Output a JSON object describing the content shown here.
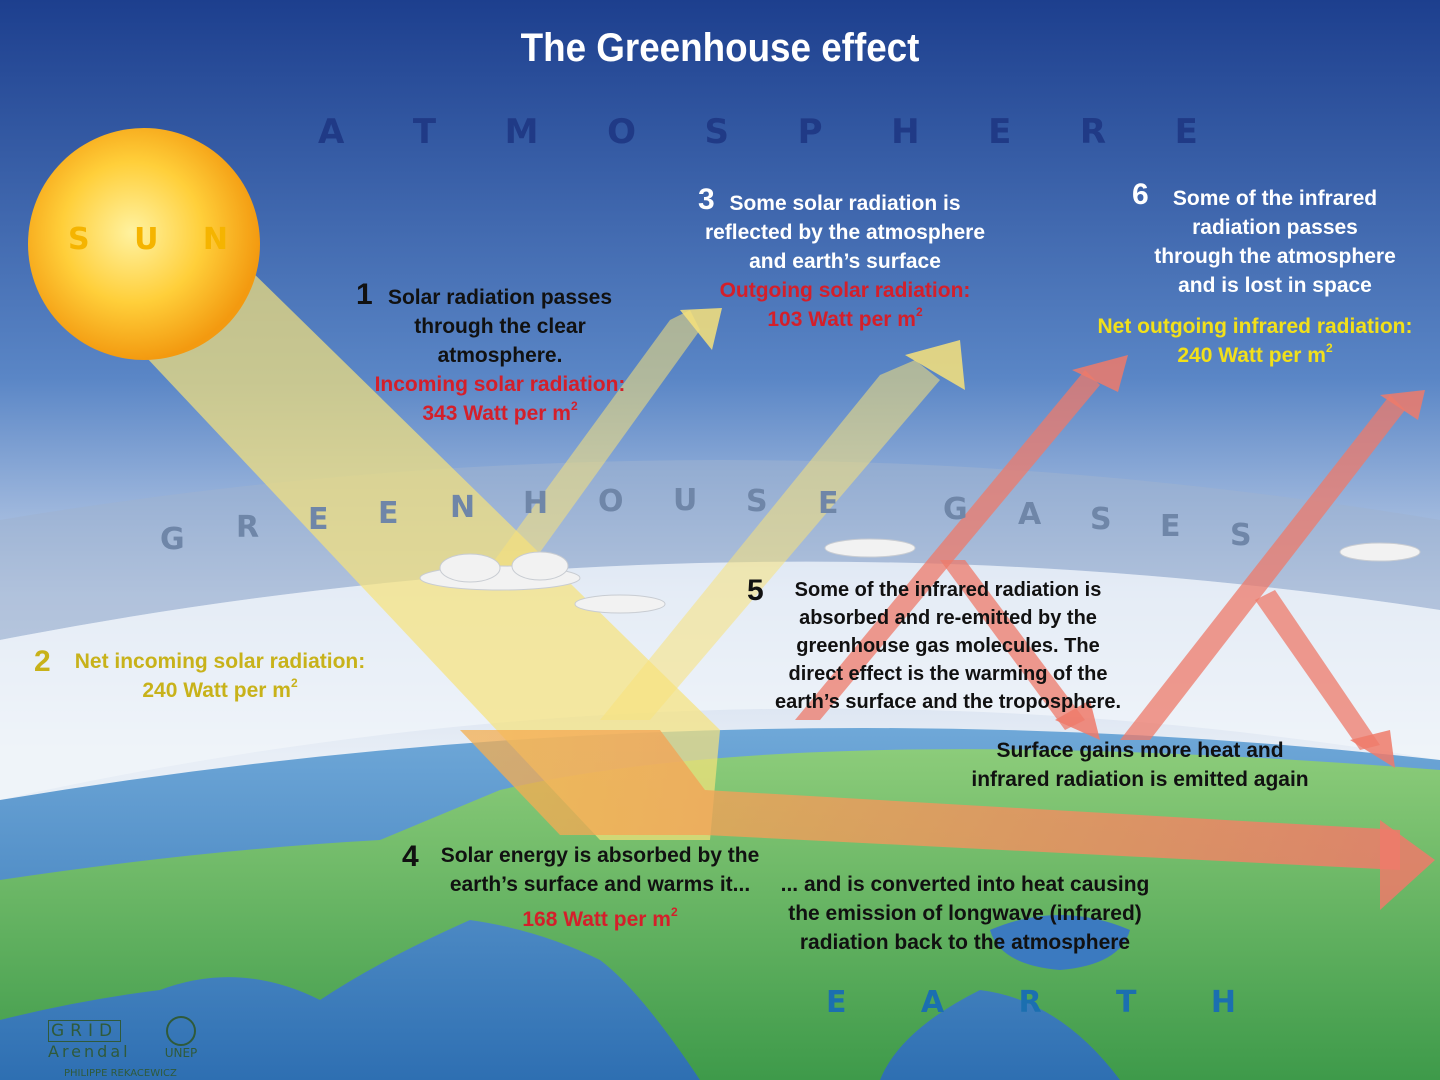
{
  "title": "The Greenhouse effect",
  "labels": {
    "atmosphere": [
      "A",
      "T",
      "M",
      "O",
      "S",
      "P",
      "H",
      "E",
      "R",
      "E"
    ],
    "sun": [
      "S",
      "U",
      "N"
    ],
    "greenhouse_gases": [
      "G",
      "R",
      "E",
      "E",
      "N",
      "H",
      "O",
      "U",
      "S",
      "E",
      "G",
      "A",
      "S",
      "E",
      "S"
    ],
    "earth": [
      "E",
      "A",
      "R",
      "T",
      "H"
    ]
  },
  "step1": {
    "num": "1",
    "line1": "Solar radiation passes",
    "line2": "through the clear",
    "line3": "atmosphere.",
    "red1": "Incoming solar radiation:",
    "red2": "343 Watt per m",
    "sup": "2"
  },
  "step2": {
    "num": "2",
    "line1": "Net incoming solar radiation:",
    "line2": "240 Watt per m",
    "sup": "2"
  },
  "step3": {
    "num": "3",
    "line1": "Some solar radiation is",
    "line2": "reflected by the atmosphere",
    "line3": "and earth’s surface",
    "red1": "Outgoing solar radiation:",
    "red2": "103 Watt per m",
    "sup": "2"
  },
  "step4": {
    "num": "4",
    "line1": "Solar energy is absorbed by the",
    "line2": "earth’s surface and warms it...",
    "red1": "168 Watt per m",
    "sup": "2"
  },
  "step4b": {
    "line1": "... and is converted into heat causing",
    "line2": "the emission of longwave (infrared)",
    "line3": "radiation back to the atmosphere"
  },
  "step5": {
    "num": "5",
    "line1": "Some of the infrared radiation is",
    "line2": "absorbed and re-emitted by the",
    "line3": "greenhouse gas molecules. The",
    "line4": "direct effect is the warming of the",
    "line5": "earth’s surface and the troposphere."
  },
  "step5b": {
    "line1": "Surface gains more heat and",
    "line2": "infrared radiation is emitted again"
  },
  "step6": {
    "num": "6",
    "line1": "Some of the infrared",
    "line2": "radiation passes",
    "line3": "through the atmosphere",
    "line4": "and is lost in space",
    "yel1": "Net outgoing infrared radiation:",
    "yel2": "240 Watt per m",
    "sup": "2"
  },
  "logos": {
    "grid": "GRID",
    "arendal": "Arendal",
    "unep": "UNEP",
    "author": "PHILIPPE REKACEWICZ"
  },
  "colors": {
    "sky_top": "#1d3f8e",
    "sky_mid": "#5a86c6",
    "incoming": "#f7e27a",
    "infrared": "#ef8a6c",
    "red_text": "#d41f2a",
    "yellow_text": "#f2e01a"
  }
}
